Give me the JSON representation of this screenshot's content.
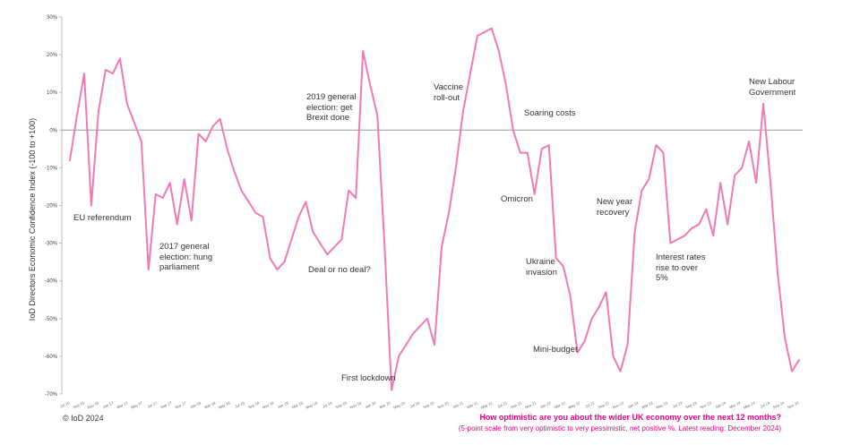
{
  "chart_data": {
    "type": "line",
    "ylabel": "IoD Directors Economic Confidence Index (-100 to +100)",
    "ylim": [
      -70,
      30
    ],
    "yticks": [
      30,
      20,
      10,
      0,
      -10,
      -20,
      -30,
      -40,
      -50,
      -60,
      -70
    ],
    "ytick_labels": [
      "30%",
      "20%",
      "10%",
      "0%",
      "-10%",
      "-20%",
      "-30%",
      "-40%",
      "-50%",
      "-60%",
      "-70%"
    ],
    "line_color": "#f07ab4",
    "zero_line": true,
    "grid": false,
    "xtick_labels": [
      "Jul 16",
      "Sep 16",
      "Nov 16",
      "Jan 17",
      "Mar 17",
      "May 17",
      "Jul 17",
      "Sep 17",
      "Nov 17",
      "Jan 18",
      "Mar 18",
      "May 18",
      "Jul 18",
      "Sep 18",
      "Nov 18",
      "Jan 19",
      "Mar 19",
      "May 19",
      "Jul 19",
      "Sep 19",
      "Nov 19",
      "Jan 20",
      "Mar 20",
      "May 20",
      "Jul 20",
      "Sep 20",
      "Nov 20",
      "Jan 21",
      "Mar 21",
      "May 21",
      "Jul 21",
      "Sep 21",
      "Nov 21",
      "Jan 22",
      "Mar 22",
      "May 22",
      "Jul 22",
      "Sep 22",
      "Nov 22",
      "Jan 23",
      "Mar 23",
      "May 23",
      "Jul 23",
      "Sep 23",
      "Nov 23",
      "Jan 24",
      "Mar 24",
      "May 24",
      "Jul 24",
      "Sep 24",
      "Nov 24"
    ],
    "values": [
      -8,
      4,
      15,
      -20,
      5,
      16,
      15,
      19,
      7,
      2,
      -3,
      -37,
      -17,
      -18,
      -14,
      -25,
      -13,
      -24,
      -1,
      -3,
      1,
      3,
      -5,
      -11,
      -16,
      -19,
      -22,
      -23,
      -34,
      -37,
      -35,
      -29,
      -23,
      -19,
      -27,
      -30,
      -33,
      -31,
      -29,
      -16,
      -18,
      21,
      12,
      4,
      -30,
      -69,
      -60,
      -57,
      -54,
      -52,
      -50,
      -57,
      -31,
      -22,
      -10,
      5,
      15,
      25,
      26,
      27,
      21,
      12,
      0,
      -6,
      -6,
      -17,
      -5,
      -4,
      -34,
      -36,
      -44,
      -59,
      -56,
      -50,
      -47,
      -43,
      -60,
      -64,
      -57,
      -27,
      -16,
      -13,
      -4,
      -6,
      -30,
      -29,
      -28,
      -26,
      -25,
      -21,
      -28,
      -14,
      -25,
      -12,
      -10,
      -3,
      -14,
      7,
      -14,
      -38,
      -55,
      -64,
      -61
    ],
    "annotations": [
      {
        "text": "EU referendum",
        "x_index": 3
      },
      {
        "text": "2017 general\nelection: hung\nparliament",
        "x_index": 11
      },
      {
        "text": "2019 general\nelection: get\nBrexit done",
        "x_index": 41
      },
      {
        "text": "Deal or no deal?",
        "x_index": 36
      },
      {
        "text": "First lockdown",
        "x_index": 45
      },
      {
        "text": "Vaccine\nroll-out",
        "x_index": 54
      },
      {
        "text": "Soaring costs",
        "x_index": 62
      },
      {
        "text": "Omicron",
        "x_index": 65
      },
      {
        "text": "Ukraine\ninvasion",
        "x_index": 69
      },
      {
        "text": "Mini-budget",
        "x_index": 71
      },
      {
        "text": "New year\nrecovery",
        "x_index": 80
      },
      {
        "text": "Interest rates\nrise to over\n5%",
        "x_index": 84
      },
      {
        "text": "New Labour\nGovernment",
        "x_index": 97
      }
    ]
  },
  "footer": {
    "copyright": "© IoD 2024",
    "question": "How optimistic are you about the wider UK economy over the next 12 months?",
    "scale_note": "(5-point scale from very optimistic to very pessimistic, net positive %. Latest reading: December 2024)"
  }
}
